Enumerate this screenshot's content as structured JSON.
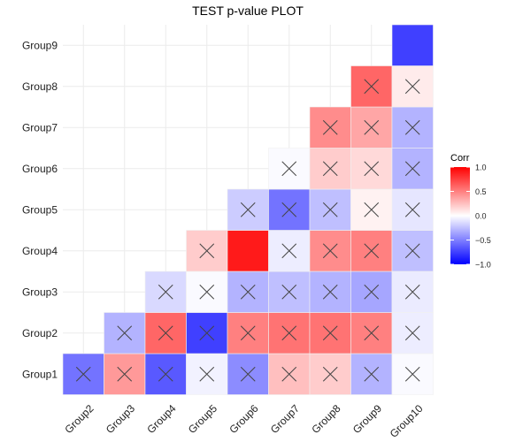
{
  "chart_data": {
    "type": "heatmap",
    "title": "TEST p-value PLOT",
    "xlabel": "",
    "ylabel": "",
    "x_categories": [
      "Group2",
      "Group3",
      "Group4",
      "Group5",
      "Group6",
      "Group7",
      "Group8",
      "Group9",
      "Group10"
    ],
    "y_categories": [
      "Group1",
      "Group2",
      "Group3",
      "Group4",
      "Group5",
      "Group6",
      "Group7",
      "Group8",
      "Group9"
    ],
    "cells": [
      {
        "x": "Group2",
        "y": "Group1",
        "value": -0.55,
        "crossed": true
      },
      {
        "x": "Group3",
        "y": "Group1",
        "value": 0.4,
        "crossed": true
      },
      {
        "x": "Group4",
        "y": "Group1",
        "value": -0.65,
        "crossed": true
      },
      {
        "x": "Group5",
        "y": "Group1",
        "value": -0.05,
        "crossed": true
      },
      {
        "x": "Group6",
        "y": "Group1",
        "value": -0.45,
        "crossed": true
      },
      {
        "x": "Group7",
        "y": "Group1",
        "value": 0.25,
        "crossed": true
      },
      {
        "x": "Group8",
        "y": "Group1",
        "value": 0.2,
        "crossed": true
      },
      {
        "x": "Group9",
        "y": "Group1",
        "value": -0.3,
        "crossed": true
      },
      {
        "x": "Group10",
        "y": "Group1",
        "value": -0.02,
        "crossed": true
      },
      {
        "x": "Group3",
        "y": "Group2",
        "value": -0.3,
        "crossed": true
      },
      {
        "x": "Group4",
        "y": "Group2",
        "value": 0.6,
        "crossed": true
      },
      {
        "x": "Group5",
        "y": "Group2",
        "value": -0.75,
        "crossed": true
      },
      {
        "x": "Group6",
        "y": "Group2",
        "value": 0.5,
        "crossed": true
      },
      {
        "x": "Group7",
        "y": "Group2",
        "value": 0.55,
        "crossed": true
      },
      {
        "x": "Group8",
        "y": "Group2",
        "value": 0.55,
        "crossed": true
      },
      {
        "x": "Group9",
        "y": "Group2",
        "value": 0.5,
        "crossed": true
      },
      {
        "x": "Group10",
        "y": "Group2",
        "value": -0.07,
        "crossed": true
      },
      {
        "x": "Group4",
        "y": "Group3",
        "value": -0.15,
        "crossed": true
      },
      {
        "x": "Group5",
        "y": "Group3",
        "value": -0.02,
        "crossed": true
      },
      {
        "x": "Group6",
        "y": "Group3",
        "value": -0.3,
        "crossed": true
      },
      {
        "x": "Group7",
        "y": "Group3",
        "value": -0.25,
        "crossed": true
      },
      {
        "x": "Group8",
        "y": "Group3",
        "value": -0.3,
        "crossed": true
      },
      {
        "x": "Group9",
        "y": "Group3",
        "value": -0.35,
        "crossed": true
      },
      {
        "x": "Group10",
        "y": "Group3",
        "value": -0.08,
        "crossed": true
      },
      {
        "x": "Group5",
        "y": "Group4",
        "value": 0.2,
        "crossed": true
      },
      {
        "x": "Group6",
        "y": "Group4",
        "value": 0.9,
        "crossed": false
      },
      {
        "x": "Group7",
        "y": "Group4",
        "value": -0.07,
        "crossed": true
      },
      {
        "x": "Group8",
        "y": "Group4",
        "value": 0.45,
        "crossed": true
      },
      {
        "x": "Group9",
        "y": "Group4",
        "value": 0.5,
        "crossed": true
      },
      {
        "x": "Group10",
        "y": "Group4",
        "value": -0.25,
        "crossed": true
      },
      {
        "x": "Group6",
        "y": "Group5",
        "value": -0.2,
        "crossed": true
      },
      {
        "x": "Group7",
        "y": "Group5",
        "value": -0.55,
        "crossed": true
      },
      {
        "x": "Group8",
        "y": "Group5",
        "value": -0.25,
        "crossed": true
      },
      {
        "x": "Group9",
        "y": "Group5",
        "value": 0.05,
        "crossed": true
      },
      {
        "x": "Group10",
        "y": "Group5",
        "value": -0.1,
        "crossed": true
      },
      {
        "x": "Group7",
        "y": "Group6",
        "value": -0.02,
        "crossed": true
      },
      {
        "x": "Group8",
        "y": "Group6",
        "value": 0.2,
        "crossed": true
      },
      {
        "x": "Group9",
        "y": "Group6",
        "value": 0.15,
        "crossed": true
      },
      {
        "x": "Group10",
        "y": "Group6",
        "value": -0.3,
        "crossed": true
      },
      {
        "x": "Group8",
        "y": "Group7",
        "value": 0.45,
        "crossed": true
      },
      {
        "x": "Group9",
        "y": "Group7",
        "value": 0.35,
        "crossed": true
      },
      {
        "x": "Group10",
        "y": "Group7",
        "value": -0.3,
        "crossed": true
      },
      {
        "x": "Group9",
        "y": "Group8",
        "value": 0.6,
        "crossed": true
      },
      {
        "x": "Group10",
        "y": "Group8",
        "value": 0.08,
        "crossed": true
      },
      {
        "x": "Group10",
        "y": "Group9",
        "value": -0.75,
        "crossed": false
      }
    ],
    "legend": {
      "title": "Corr",
      "placement": "right",
      "range": [
        -1,
        1
      ],
      "ticks": [
        1.0,
        0.5,
        0.0,
        -0.5,
        -1.0
      ],
      "tick_labels": [
        "1.0",
        "0.5",
        "0.0",
        "−0.5",
        "−1.0"
      ]
    },
    "colors": {
      "low": "#0000ff",
      "mid": "#ffffff",
      "high": "#ff0000",
      "grid": "#ebebeb",
      "cross": "#444444",
      "cell_border": "#f0f0f0"
    },
    "grid": true,
    "cross_marker": "x-icon"
  }
}
